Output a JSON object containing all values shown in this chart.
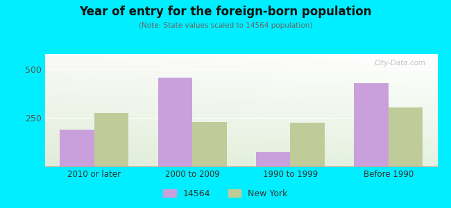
{
  "title": "Year of entry for the foreign-born population",
  "subtitle": "(Note: State values scaled to 14564 population)",
  "categories": [
    "2010 or later",
    "2000 to 2009",
    "1990 to 1999",
    "Before 1990"
  ],
  "values_14564": [
    190,
    460,
    75,
    430
  ],
  "values_ny": [
    275,
    230,
    225,
    305
  ],
  "color_14564": "#c9a0dc",
  "color_ny": "#bfcc99",
  "background_outer": "#00eeff",
  "ylim": [
    0,
    580
  ],
  "yticks": [
    0,
    250,
    500
  ],
  "bar_width": 0.35,
  "legend_label_14564": "14564",
  "legend_label_ny": "New York",
  "watermark": "City-Data.com"
}
